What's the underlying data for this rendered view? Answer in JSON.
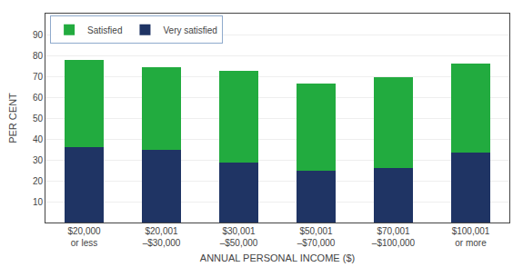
{
  "chart_data": {
    "type": "bar",
    "stacked": true,
    "xlabel": "ANNUAL PERSONAL INCOME ($)",
    "ylabel": "PER CENT",
    "categories": [
      "$20,000\nor less",
      "$20,001\n–$30,000",
      "$30,001\n–$50,000",
      "$50,001\n–$70,000",
      "$70,001\n–$100,000",
      "$100,001\nor more"
    ],
    "series": [
      {
        "name": "Very satisfied",
        "color": "#1f3464",
        "values": [
          36,
          35,
          28.5,
          25,
          26,
          33.5
        ]
      },
      {
        "name": "Satisfied",
        "color": "#22ab3f",
        "values": [
          42,
          39.5,
          44,
          41.5,
          43.5,
          42.5
        ]
      }
    ],
    "ylim": [
      0,
      100
    ],
    "yticks": [
      10,
      20,
      30,
      40,
      50,
      60,
      70,
      80,
      90
    ],
    "grid": true,
    "legend": "upper left"
  }
}
